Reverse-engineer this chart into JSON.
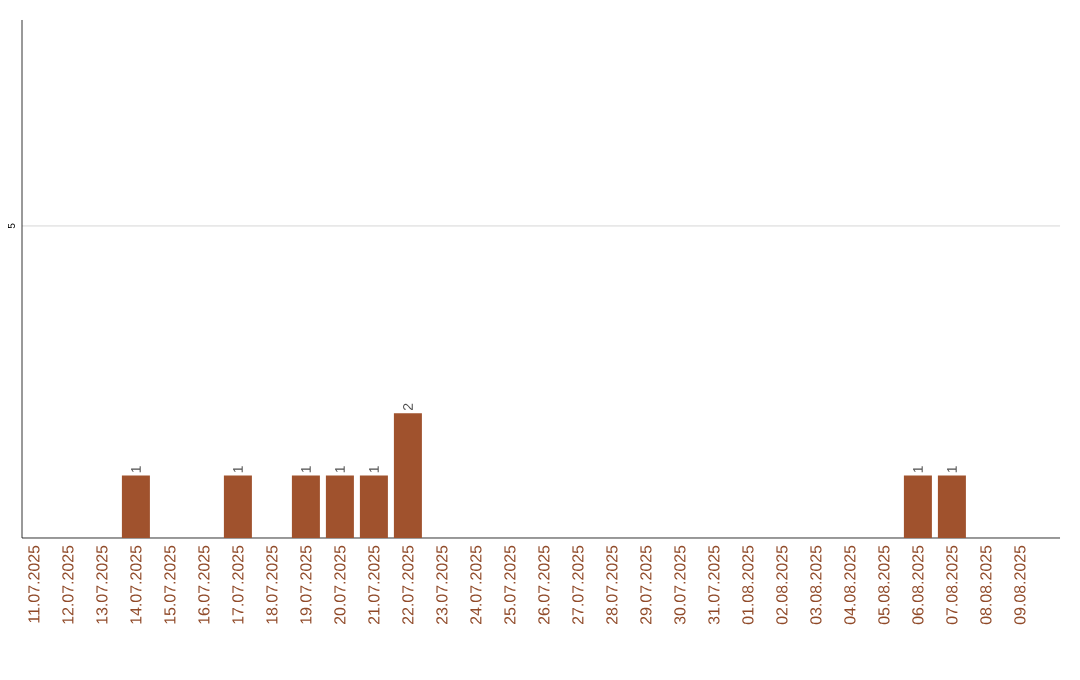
{
  "chart_data": {
    "type": "bar",
    "categories": [
      "11.07.2025",
      "12.07.2025",
      "13.07.2025",
      "14.07.2025",
      "15.07.2025",
      "16.07.2025",
      "17.07.2025",
      "18.07.2025",
      "19.07.2025",
      "20.07.2025",
      "21.07.2025",
      "22.07.2025",
      "23.07.2025",
      "24.07.2025",
      "25.07.2025",
      "26.07.2025",
      "27.07.2025",
      "28.07.2025",
      "29.07.2025",
      "30.07.2025",
      "31.07.2025",
      "01.08.2025",
      "02.08.2025",
      "03.08.2025",
      "04.08.2025",
      "05.08.2025",
      "06.08.2025",
      "07.08.2025",
      "08.08.2025",
      "09.08.2025"
    ],
    "values": [
      0,
      0,
      0,
      1,
      0,
      0,
      1,
      0,
      1,
      1,
      1,
      2,
      0,
      0,
      0,
      0,
      0,
      0,
      0,
      0,
      0,
      0,
      0,
      0,
      0,
      0,
      1,
      1,
      0,
      0
    ],
    "value_labels": [
      null,
      null,
      null,
      "1",
      null,
      null,
      "1",
      null,
      "1",
      "1",
      "1",
      "2",
      null,
      null,
      null,
      null,
      null,
      null,
      null,
      null,
      null,
      null,
      null,
      null,
      null,
      null,
      "1",
      "1",
      null,
      null
    ],
    "color": "#a0522d",
    "ylim": [
      0,
      8.3
    ],
    "yticks": [
      5
    ],
    "grid": "y"
  }
}
